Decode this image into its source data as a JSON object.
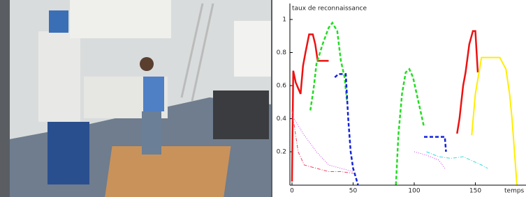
{
  "chart_data": {
    "type": "line",
    "title": "taux de reconnaissance",
    "xlabel": "temps",
    "xlim": [
      0,
      190
    ],
    "xticks": [
      0,
      50,
      100,
      150
    ],
    "ylim": [
      0,
      1.1
    ],
    "yticks": [
      0.2,
      0.4,
      0.6,
      0.8,
      1
    ],
    "series": [
      {
        "color": "#ee1111",
        "style": "solid",
        "width": 2.5,
        "x": [
          0,
          1,
          3,
          7,
          9,
          11,
          14,
          17,
          19,
          21,
          24,
          30,
          120,
          135,
          137,
          140,
          142,
          145,
          148,
          150,
          152
        ],
        "values": [
          0.02,
          0.69,
          0.62,
          0.55,
          0.72,
          0.8,
          0.91,
          0.91,
          0.85,
          0.75,
          0.75,
          0.75,
          null,
          0.31,
          0.4,
          0.6,
          0.68,
          0.85,
          0.93,
          0.93,
          0.68
        ]
      },
      {
        "color": "#22dd22",
        "style": "dashed",
        "width": 2.5,
        "x": [
          15,
          18,
          20,
          25,
          30,
          33,
          37,
          40,
          43,
          45,
          60,
          85,
          87,
          90,
          93,
          96,
          99,
          102,
          105,
          108
        ],
        "values": [
          0.45,
          0.6,
          0.73,
          0.85,
          0.95,
          0.98,
          0.93,
          0.75,
          0.65,
          0.5,
          null,
          0,
          0.3,
          0.55,
          0.68,
          0.7,
          0.65,
          0.55,
          0.45,
          0.35
        ]
      },
      {
        "color": "#1122dd",
        "style": "dashed",
        "width": 2.5,
        "x": [
          35,
          38,
          44,
          46,
          48,
          50,
          52,
          54,
          80,
          108,
          125,
          126
        ],
        "values": [
          0.65,
          0.67,
          0.67,
          0.4,
          0.2,
          0.1,
          0.05,
          0,
          null,
          0.29,
          0.29,
          0.2
        ]
      },
      {
        "color": "#ffee00",
        "style": "solid",
        "width": 2,
        "x": [
          147,
          150,
          155,
          170,
          175,
          178,
          180,
          182,
          184
        ],
        "values": [
          0.3,
          0.55,
          0.77,
          0.77,
          0.7,
          0.55,
          0.4,
          0.2,
          0
        ]
      },
      {
        "color": "#cc44ee",
        "style": "dotted",
        "width": 1,
        "x": [
          0,
          10,
          20,
          30,
          40,
          50,
          80,
          100,
          110,
          120,
          125
        ],
        "values": [
          0.42,
          0.3,
          0.2,
          0.12,
          0.1,
          0.08,
          null,
          0.2,
          0.18,
          0.15,
          0.1
        ]
      },
      {
        "color": "#33dddd",
        "style": "dashdot",
        "width": 1,
        "x": [
          110,
          120,
          130,
          140,
          155,
          160
        ],
        "values": [
          0.2,
          0.17,
          0.16,
          0.17,
          0.12,
          0.1
        ]
      },
      {
        "color": "#ee4466",
        "style": "dashdot",
        "width": 1,
        "x": [
          0,
          5,
          10,
          20,
          30,
          40,
          50
        ],
        "values": [
          0.45,
          0.2,
          0.12,
          0.1,
          0.08,
          0.08,
          0.07
        ]
      }
    ]
  }
}
